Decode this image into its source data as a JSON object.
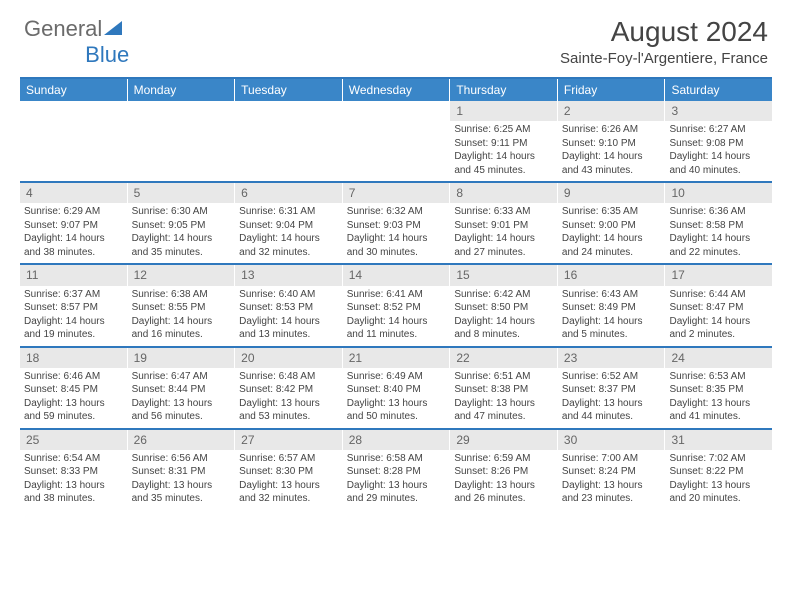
{
  "logo": {
    "general": "General",
    "blue": "Blue"
  },
  "title": "August 2024",
  "location": "Sainte-Foy-l'Argentiere, France",
  "colors": {
    "header_bar": "#3a86c8",
    "rule": "#2f78bd",
    "daynum_bg": "#e8e8e8",
    "text": "#444444"
  },
  "dow": [
    "Sunday",
    "Monday",
    "Tuesday",
    "Wednesday",
    "Thursday",
    "Friday",
    "Saturday"
  ],
  "weeks": [
    [
      {
        "n": "",
        "empty": true
      },
      {
        "n": "",
        "empty": true
      },
      {
        "n": "",
        "empty": true
      },
      {
        "n": "",
        "empty": true
      },
      {
        "n": "1",
        "sr": "6:25 AM",
        "ss": "9:11 PM",
        "dl": "14 hours and 45 minutes."
      },
      {
        "n": "2",
        "sr": "6:26 AM",
        "ss": "9:10 PM",
        "dl": "14 hours and 43 minutes."
      },
      {
        "n": "3",
        "sr": "6:27 AM",
        "ss": "9:08 PM",
        "dl": "14 hours and 40 minutes."
      }
    ],
    [
      {
        "n": "4",
        "sr": "6:29 AM",
        "ss": "9:07 PM",
        "dl": "14 hours and 38 minutes."
      },
      {
        "n": "5",
        "sr": "6:30 AM",
        "ss": "9:05 PM",
        "dl": "14 hours and 35 minutes."
      },
      {
        "n": "6",
        "sr": "6:31 AM",
        "ss": "9:04 PM",
        "dl": "14 hours and 32 minutes."
      },
      {
        "n": "7",
        "sr": "6:32 AM",
        "ss": "9:03 PM",
        "dl": "14 hours and 30 minutes."
      },
      {
        "n": "8",
        "sr": "6:33 AM",
        "ss": "9:01 PM",
        "dl": "14 hours and 27 minutes."
      },
      {
        "n": "9",
        "sr": "6:35 AM",
        "ss": "9:00 PM",
        "dl": "14 hours and 24 minutes."
      },
      {
        "n": "10",
        "sr": "6:36 AM",
        "ss": "8:58 PM",
        "dl": "14 hours and 22 minutes."
      }
    ],
    [
      {
        "n": "11",
        "sr": "6:37 AM",
        "ss": "8:57 PM",
        "dl": "14 hours and 19 minutes."
      },
      {
        "n": "12",
        "sr": "6:38 AM",
        "ss": "8:55 PM",
        "dl": "14 hours and 16 minutes."
      },
      {
        "n": "13",
        "sr": "6:40 AM",
        "ss": "8:53 PM",
        "dl": "14 hours and 13 minutes."
      },
      {
        "n": "14",
        "sr": "6:41 AM",
        "ss": "8:52 PM",
        "dl": "14 hours and 11 minutes."
      },
      {
        "n": "15",
        "sr": "6:42 AM",
        "ss": "8:50 PM",
        "dl": "14 hours and 8 minutes."
      },
      {
        "n": "16",
        "sr": "6:43 AM",
        "ss": "8:49 PM",
        "dl": "14 hours and 5 minutes."
      },
      {
        "n": "17",
        "sr": "6:44 AM",
        "ss": "8:47 PM",
        "dl": "14 hours and 2 minutes."
      }
    ],
    [
      {
        "n": "18",
        "sr": "6:46 AM",
        "ss": "8:45 PM",
        "dl": "13 hours and 59 minutes."
      },
      {
        "n": "19",
        "sr": "6:47 AM",
        "ss": "8:44 PM",
        "dl": "13 hours and 56 minutes."
      },
      {
        "n": "20",
        "sr": "6:48 AM",
        "ss": "8:42 PM",
        "dl": "13 hours and 53 minutes."
      },
      {
        "n": "21",
        "sr": "6:49 AM",
        "ss": "8:40 PM",
        "dl": "13 hours and 50 minutes."
      },
      {
        "n": "22",
        "sr": "6:51 AM",
        "ss": "8:38 PM",
        "dl": "13 hours and 47 minutes."
      },
      {
        "n": "23",
        "sr": "6:52 AM",
        "ss": "8:37 PM",
        "dl": "13 hours and 44 minutes."
      },
      {
        "n": "24",
        "sr": "6:53 AM",
        "ss": "8:35 PM",
        "dl": "13 hours and 41 minutes."
      }
    ],
    [
      {
        "n": "25",
        "sr": "6:54 AM",
        "ss": "8:33 PM",
        "dl": "13 hours and 38 minutes."
      },
      {
        "n": "26",
        "sr": "6:56 AM",
        "ss": "8:31 PM",
        "dl": "13 hours and 35 minutes."
      },
      {
        "n": "27",
        "sr": "6:57 AM",
        "ss": "8:30 PM",
        "dl": "13 hours and 32 minutes."
      },
      {
        "n": "28",
        "sr": "6:58 AM",
        "ss": "8:28 PM",
        "dl": "13 hours and 29 minutes."
      },
      {
        "n": "29",
        "sr": "6:59 AM",
        "ss": "8:26 PM",
        "dl": "13 hours and 26 minutes."
      },
      {
        "n": "30",
        "sr": "7:00 AM",
        "ss": "8:24 PM",
        "dl": "13 hours and 23 minutes."
      },
      {
        "n": "31",
        "sr": "7:02 AM",
        "ss": "8:22 PM",
        "dl": "13 hours and 20 minutes."
      }
    ]
  ],
  "labels": {
    "sunrise": "Sunrise:",
    "sunset": "Sunset:",
    "daylight": "Daylight:"
  }
}
